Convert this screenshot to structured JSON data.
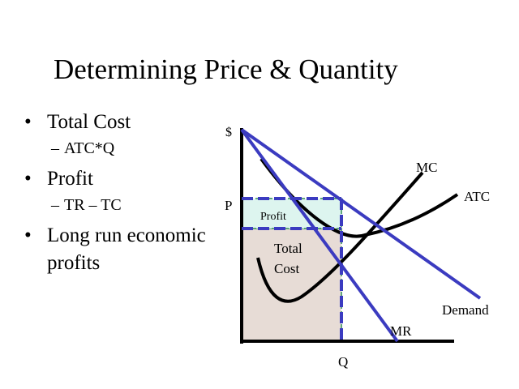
{
  "slide": {
    "title": "Determining Price & Quantity"
  },
  "bullets": [
    {
      "text": "Total Cost",
      "sub": "ATC*Q"
    },
    {
      "text": "Profit",
      "sub": "TR – TC"
    },
    {
      "text": "Long run economic profits",
      "sub": ""
    }
  ],
  "diagram": {
    "y_axis_label": "$",
    "x_axis_label": "Q",
    "price_label": "P",
    "profit_label": "Profit",
    "total_cost_label_line1": "Total",
    "total_cost_label_line2": "Cost",
    "mc_label": "MC",
    "atc_label": "ATC",
    "demand_label": "Demand",
    "mr_label": "MR",
    "colors": {
      "demand_mr": "#3b3bc0",
      "dashed_lines": "#3b3bc0",
      "profit_fill": "#ddf5ef",
      "total_cost_fill": "#e7dcd6",
      "region_border": "#2e8b57",
      "curves": "#000000"
    }
  }
}
